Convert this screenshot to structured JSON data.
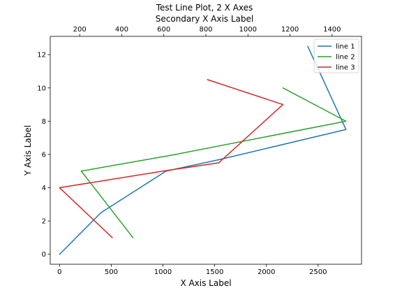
{
  "chart_data": {
    "type": "line",
    "title": "Test Line Plot, 2 X Axes",
    "xlabel": "X Axis Label",
    "ylabel": "Y Axis Label",
    "secondary_xlabel": "Secondary X Axis Label",
    "xlim": [
      -90,
      2920
    ],
    "ylim": [
      -0.6,
      13.1
    ],
    "secondary_xlim": [
      60,
      1540
    ],
    "xticks": [
      0,
      500,
      1000,
      1500,
      2000,
      2500
    ],
    "yticks": [
      0,
      2,
      4,
      6,
      8,
      10,
      12
    ],
    "secondary_xticks": [
      200,
      400,
      600,
      800,
      1000,
      1200,
      1400
    ],
    "grid": false,
    "legend_position": "top-right",
    "series": [
      {
        "name": "line 1",
        "color": "#1f77b4",
        "x": [
          0,
          400,
          1030,
          1550,
          2770,
          2400
        ],
        "y": [
          0,
          2.5,
          5,
          5.7,
          7.5,
          12.5
        ]
      },
      {
        "name": "line 2",
        "color": "#2ca02c",
        "x": [
          710,
          210,
          1120,
          2770,
          2160
        ],
        "y": [
          1,
          5,
          6,
          8,
          10
        ]
      },
      {
        "name": "line 3",
        "color": "#d62728",
        "x": [
          510,
          0,
          1000,
          1540,
          2160,
          1430
        ],
        "y": [
          1,
          4,
          5,
          5.5,
          9,
          10.5
        ]
      }
    ]
  }
}
